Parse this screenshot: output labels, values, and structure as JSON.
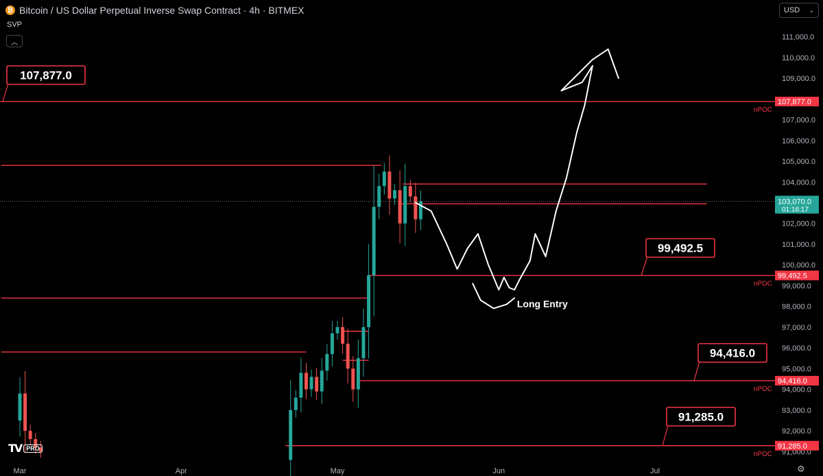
{
  "header": {
    "coin_icon": "bitcoin-icon",
    "title": "Bitcoin / US Dollar Perpetual Inverse Swap Contract · 4h · BITMEX",
    "indicator": "SVP"
  },
  "currency": "USD",
  "branding": "PRO",
  "colors": {
    "background": "#000000",
    "level_line": "#f23645",
    "candle_up": "#26a69a",
    "candle_down": "#ef5350",
    "drawing": "#ffffff",
    "price_tag": "#26a69a"
  },
  "chart_data": {
    "type": "candlestick",
    "title": "Bitcoin / US Dollar Perpetual Inverse Swap Contract · 4h · BITMEX",
    "ylim": [
      90500,
      111400
    ],
    "y_ticks": [
      91000,
      92000,
      93000,
      94000,
      95000,
      96000,
      97000,
      98000,
      99000,
      100000,
      101000,
      102000,
      103000,
      104000,
      105000,
      106000,
      107000,
      108000,
      109000,
      110000,
      111000
    ],
    "y_tick_labels": [
      "91,000.0",
      "92,000.0",
      "93,000.0",
      "94,000.0",
      "95,000.0",
      "96,000.0",
      "97,000.0",
      "98,000.0",
      "99,000.0",
      "100,000.0",
      "101,000.0",
      "102,000.0",
      "103,000.0",
      "104,000.0",
      "105,000.0",
      "106,000.0",
      "107,000.0",
      "108,000.0",
      "109,000.0",
      "110,000.0",
      "111,000.0"
    ],
    "x_ticks": [
      {
        "label": "Mar",
        "t": 0
      },
      {
        "label": "Apr",
        "t": 31
      },
      {
        "label": "May",
        "t": 61
      },
      {
        "label": "Jun",
        "t": 92
      },
      {
        "label": "Jul",
        "t": 122
      }
    ],
    "x_range_days": [
      -3.6,
      132
    ],
    "current_price": {
      "value": 103070,
      "label": "103,070.0",
      "countdown": "01:16:17"
    },
    "npoc_levels": [
      {
        "value": 107877,
        "label": "107,877.0",
        "callout": "107,877.0",
        "tag": "nPOC"
      },
      {
        "value": 99492.5,
        "label": "99,492.5",
        "callout": "99,492.5",
        "tag": "nPOC"
      },
      {
        "value": 94416,
        "label": "94,416.0",
        "callout": "94,416.0",
        "tag": "nPOC"
      },
      {
        "value": 91285,
        "label": "91,285.0",
        "callout": "91,285.0",
        "tag": "nPOC"
      }
    ],
    "svp_levels": [
      {
        "value": 104800,
        "from_day": -3.6,
        "to_day": 69.5
      },
      {
        "value": 103900,
        "from_day": 73.5,
        "to_day": 132
      },
      {
        "value": 102950,
        "from_day": 73,
        "to_day": 132
      },
      {
        "value": 98400,
        "from_day": -3.6,
        "to_day": 67
      },
      {
        "value": 96800,
        "from_day": 62,
        "to_day": 67
      },
      {
        "value": 95800,
        "from_day": -3.6,
        "to_day": 55
      },
      {
        "value": 95400,
        "from_day": 62,
        "to_day": 67
      }
    ],
    "series": [
      {
        "name": "Price (4h candles)",
        "points": [
          {
            "t": 0,
            "o": 92500,
            "c": 93800
          },
          {
            "t": 1,
            "o": 93800,
            "c": 92000
          },
          {
            "t": 2,
            "o": 92000,
            "c": 91600
          },
          {
            "t": 3,
            "o": 91600,
            "c": 91200
          },
          {
            "t": 4,
            "o": 91200,
            "c": 91000
          },
          {
            "t": 52,
            "o": 90600,
            "c": 93000
          },
          {
            "t": 53,
            "o": 93000,
            "c": 93600
          },
          {
            "t": 54,
            "o": 93600,
            "c": 94800
          },
          {
            "t": 55,
            "o": 94800,
            "c": 94000
          },
          {
            "t": 56,
            "o": 94000,
            "c": 94600
          },
          {
            "t": 57,
            "o": 94600,
            "c": 93900
          },
          {
            "t": 58,
            "o": 93900,
            "c": 94900
          },
          {
            "t": 59,
            "o": 94900,
            "c": 95700
          },
          {
            "t": 60,
            "o": 95700,
            "c": 96700
          },
          {
            "t": 61,
            "o": 96700,
            "c": 97000
          },
          {
            "t": 62,
            "o": 97000,
            "c": 96200
          },
          {
            "t": 63,
            "o": 96200,
            "c": 95000
          },
          {
            "t": 64,
            "o": 95000,
            "c": 94000
          },
          {
            "t": 65,
            "o": 94000,
            "c": 95500
          },
          {
            "t": 66,
            "o": 95500,
            "c": 97000
          },
          {
            "t": 67,
            "o": 97000,
            "c": 99500
          },
          {
            "t": 68,
            "o": 99500,
            "c": 102800
          },
          {
            "t": 69,
            "o": 102800,
            "c": 103800
          },
          {
            "t": 70,
            "o": 103800,
            "c": 104500
          },
          {
            "t": 71,
            "o": 104500,
            "c": 103200
          },
          {
            "t": 72,
            "o": 103200,
            "c": 103600
          },
          {
            "t": 73,
            "o": 103600,
            "c": 102000
          },
          {
            "t": 74,
            "o": 102000,
            "c": 103800
          },
          {
            "t": 75,
            "o": 103800,
            "c": 103300
          },
          {
            "t": 76,
            "o": 103300,
            "c": 102200
          },
          {
            "t": 77,
            "o": 102200,
            "c": 103070
          }
        ]
      }
    ],
    "annotations": [
      {
        "type": "text",
        "text": "Long Entry"
      },
      {
        "type": "hand-drawn-path",
        "points": [
          [
            76,
            103000
          ],
          [
            79,
            102600
          ],
          [
            82,
            101000
          ],
          [
            84,
            99800
          ],
          [
            86,
            100800
          ],
          [
            88,
            101500
          ],
          [
            90,
            100000
          ],
          [
            92,
            98800
          ],
          [
            93,
            99400
          ],
          [
            94,
            98900
          ],
          [
            95,
            98800
          ],
          [
            96,
            99300
          ],
          [
            98,
            100200
          ],
          [
            99,
            101500
          ],
          [
            101,
            100400
          ],
          [
            103,
            102600
          ],
          [
            105,
            104200
          ],
          [
            107,
            106400
          ],
          [
            108.5,
            107700
          ],
          [
            110,
            109600
          ],
          [
            108,
            108800
          ],
          [
            104,
            108400
          ],
          [
            110,
            109900
          ],
          [
            113,
            110400
          ],
          [
            115,
            109000
          ]
        ]
      },
      {
        "type": "hand-drawn-path",
        "points": [
          [
            87,
            99100
          ],
          [
            88.5,
            98300
          ],
          [
            91,
            97900
          ],
          [
            93.5,
            98100
          ],
          [
            95,
            98400
          ]
        ]
      }
    ]
  }
}
